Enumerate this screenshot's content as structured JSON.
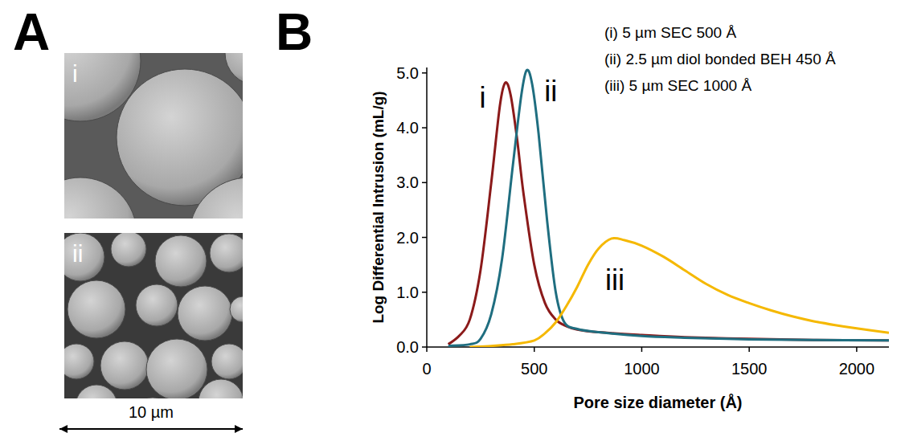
{
  "figure": {
    "panels": [
      {
        "label": "A",
        "images": [
          {
            "label": "i"
          },
          {
            "label": "ii"
          }
        ],
        "scale_bar": "10 µm"
      },
      {
        "label": "B"
      }
    ]
  },
  "chart_data": {
    "type": "line",
    "x_label": "Pore size diameter (Å)",
    "y_label": "Log Differential Intrusion (mL/g)",
    "xlim": [
      0,
      2150
    ],
    "xticks": [
      0,
      500,
      1000,
      1500,
      2000
    ],
    "ylim": [
      0,
      5.1
    ],
    "yticks": [
      {
        "value": 0,
        "label": "0.0"
      },
      {
        "value": 1,
        "label": "1.0"
      },
      {
        "value": 2,
        "label": "2.0"
      },
      {
        "value": 3,
        "label": "3.0"
      },
      {
        "value": 4,
        "label": "4.0"
      },
      {
        "value": 5,
        "label": "5.0"
      }
    ],
    "grid": false,
    "legend": "upper right",
    "series": [
      {
        "name": "(i) 5 µm SEC 500 Å",
        "label": "i",
        "color": "#8b1a1a",
        "x": [
          100,
          150,
          200,
          250,
          300,
          340,
          365,
          390,
          420,
          450,
          500,
          550,
          600,
          650,
          700,
          800,
          1000,
          1200,
          1500,
          1800,
          2150
        ],
        "values": [
          0.05,
          0.2,
          0.5,
          1.4,
          3.0,
          4.4,
          4.82,
          4.6,
          3.8,
          2.8,
          1.5,
          0.8,
          0.5,
          0.38,
          0.32,
          0.27,
          0.22,
          0.18,
          0.15,
          0.13,
          0.12
        ]
      },
      {
        "name": "(ii) 2.5 µm diol bonded BEH 450 Å",
        "label": "ii",
        "color": "#1f6e80",
        "x": [
          100,
          200,
          250,
          300,
          350,
          400,
          440,
          465,
          490,
          520,
          560,
          600,
          640,
          700,
          800,
          1000,
          1200,
          1500,
          1800,
          2150
        ],
        "values": [
          0.02,
          0.05,
          0.15,
          0.6,
          1.6,
          3.3,
          4.6,
          5.05,
          4.8,
          3.9,
          2.3,
          1.0,
          0.45,
          0.33,
          0.27,
          0.2,
          0.17,
          0.14,
          0.13,
          0.12
        ]
      },
      {
        "name": "(iii) 5 µm SEC 1000 Å",
        "label": "iii",
        "color": "#f5b800",
        "x": [
          200,
          300,
          400,
          500,
          550,
          600,
          650,
          700,
          750,
          800,
          860,
          920,
          1000,
          1100,
          1200,
          1300,
          1400,
          1500,
          1600,
          1700,
          1800,
          1900,
          2000,
          2150
        ],
        "values": [
          0.0,
          0.02,
          0.05,
          0.12,
          0.25,
          0.45,
          0.75,
          1.1,
          1.5,
          1.8,
          1.98,
          1.95,
          1.85,
          1.65,
          1.4,
          1.15,
          0.95,
          0.8,
          0.67,
          0.56,
          0.47,
          0.4,
          0.34,
          0.26
        ]
      }
    ]
  }
}
